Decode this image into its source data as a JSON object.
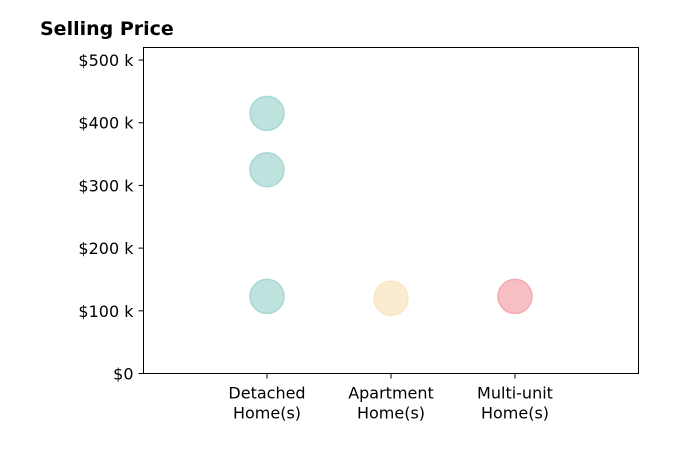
{
  "chart_data": {
    "type": "scatter",
    "title": "Selling Price",
    "xlabel": "",
    "ylabel": "",
    "categories": [
      [
        "Detached",
        "Home(s)"
      ],
      [
        "Apartment",
        "Home(s)"
      ],
      [
        "Multi-unit",
        "Home(s)"
      ]
    ],
    "ylim": [
      0,
      520000
    ],
    "yticks": [
      {
        "value": 0,
        "label": "$0"
      },
      {
        "value": 100000,
        "label": "$100 k"
      },
      {
        "value": 200000,
        "label": "$200 k"
      },
      {
        "value": 300000,
        "label": "$300 k"
      },
      {
        "value": 400000,
        "label": "$400 k"
      },
      {
        "value": 500000,
        "label": "$500 k"
      }
    ],
    "points": [
      {
        "category": 0,
        "value": 415000,
        "color": "#a8d8d2"
      },
      {
        "category": 0,
        "value": 325000,
        "color": "#a8d8d2"
      },
      {
        "category": 0,
        "value": 123000,
        "color": "#a8d8d2"
      },
      {
        "category": 1,
        "value": 120000,
        "color": "#f8e6c2"
      },
      {
        "category": 2,
        "value": 123000,
        "color": "#f4a9b0"
      }
    ],
    "grid": false,
    "legend": "none"
  }
}
